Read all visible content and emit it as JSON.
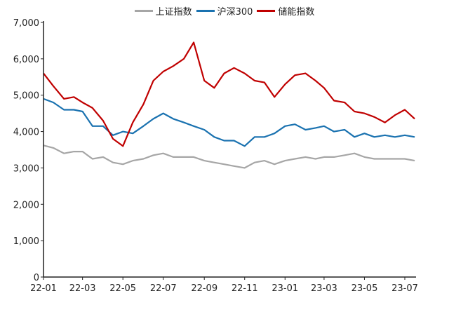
{
  "chart_data": {
    "type": "line",
    "title": "",
    "xlabel": "",
    "ylabel": "",
    "ylim": [
      0,
      7000
    ],
    "yticks": [
      0,
      1000,
      2000,
      3000,
      4000,
      5000,
      6000,
      7000
    ],
    "ytick_labels": [
      "0",
      "1,000",
      "2,000",
      "3,000",
      "4,000",
      "5,000",
      "6,000",
      "7,000"
    ],
    "xlim": [
      "2022-01-01",
      "2023-07-17"
    ],
    "xticks": [
      "2022-01-01",
      "2022-03-01",
      "2022-05-01",
      "2022-07-01",
      "2022-09-01",
      "2022-11-01",
      "2023-01-01",
      "2023-03-01",
      "2023-05-01",
      "2023-07-01"
    ],
    "xtick_labels": [
      "22-01",
      "22-03",
      "22-05",
      "22-07",
      "22-09",
      "22-11",
      "23-01",
      "23-03",
      "23-05",
      "23-07"
    ],
    "grid": false,
    "legend_position": "top",
    "x": [
      "2022-01-01",
      "2022-01-16",
      "2022-02-01",
      "2022-02-16",
      "2022-03-01",
      "2022-03-16",
      "2022-04-01",
      "2022-04-16",
      "2022-05-01",
      "2022-05-16",
      "2022-06-01",
      "2022-06-16",
      "2022-07-01",
      "2022-07-16",
      "2022-08-01",
      "2022-08-16",
      "2022-09-01",
      "2022-09-16",
      "2022-10-01",
      "2022-10-16",
      "2022-11-01",
      "2022-11-16",
      "2022-12-01",
      "2022-12-16",
      "2023-01-01",
      "2023-01-16",
      "2023-02-01",
      "2023-02-16",
      "2023-03-01",
      "2023-03-16",
      "2023-04-01",
      "2023-04-16",
      "2023-05-01",
      "2023-05-16",
      "2023-06-01",
      "2023-06-16",
      "2023-07-01",
      "2023-07-16"
    ],
    "series": [
      {
        "name": "上证指数",
        "color": "#a6a6a6",
        "values": [
          3620,
          3550,
          3400,
          3450,
          3450,
          3250,
          3300,
          3150,
          3100,
          3200,
          3250,
          3350,
          3400,
          3300,
          3300,
          3300,
          3200,
          3150,
          3100,
          3050,
          3000,
          3150,
          3200,
          3100,
          3200,
          3250,
          3300,
          3250,
          3300,
          3300,
          3350,
          3400,
          3300,
          3250,
          3250,
          3250,
          3250,
          3200
        ]
      },
      {
        "name": "沪深300",
        "color": "#1a72b0",
        "values": [
          4900,
          4800,
          4600,
          4600,
          4550,
          4150,
          4150,
          3900,
          4000,
          3950,
          4150,
          4350,
          4500,
          4350,
          4250,
          4150,
          4050,
          3850,
          3750,
          3750,
          3600,
          3850,
          3850,
          3950,
          4150,
          4200,
          4050,
          4100,
          4150,
          4000,
          4050,
          3850,
          3950,
          3850,
          3900,
          3850,
          3900,
          3850
        ]
      },
      {
        "name": "储能指数",
        "color": "#c00000",
        "values": [
          5600,
          5250,
          4900,
          4950,
          4800,
          4650,
          4300,
          3800,
          3600,
          4250,
          4750,
          5400,
          5650,
          5800,
          6000,
          6450,
          5400,
          5200,
          5600,
          5750,
          5600,
          5400,
          5350,
          4950,
          5300,
          5550,
          5600,
          5400,
          5200,
          4850,
          4800,
          4550,
          4500,
          4400,
          4250,
          4450,
          4600,
          4350
        ]
      }
    ]
  }
}
